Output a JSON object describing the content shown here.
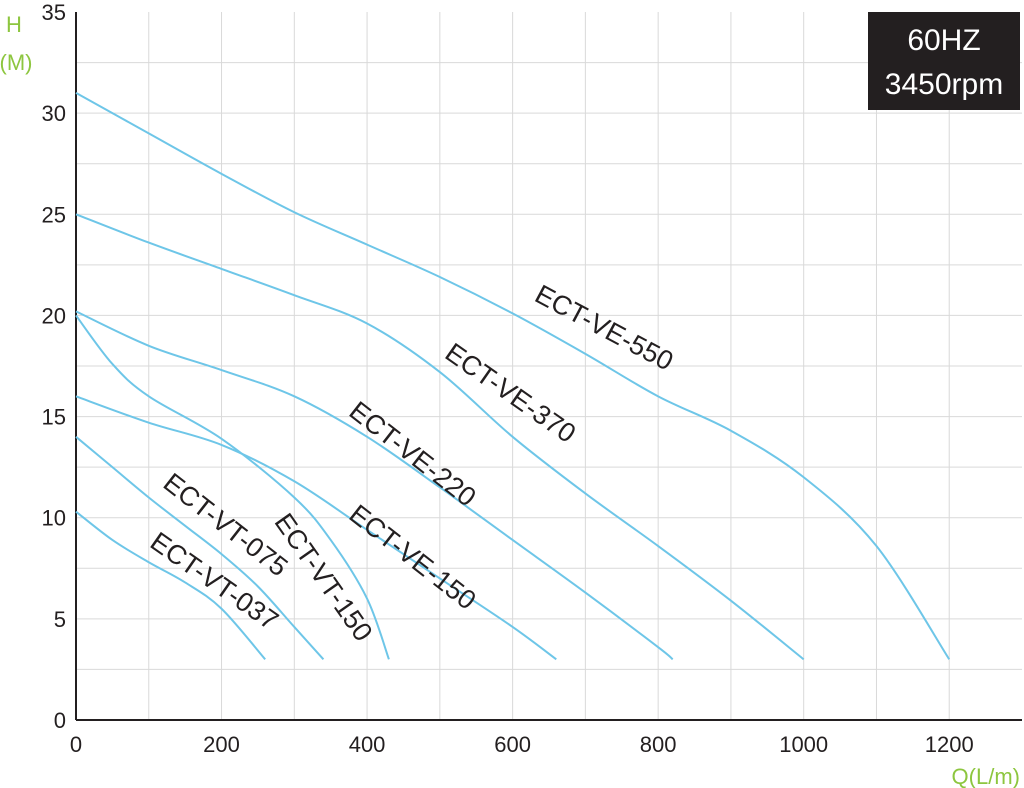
{
  "chart_data": {
    "type": "line",
    "xlabel": "Q(L/m)",
    "ylabel_line1": "H",
    "ylabel_line2": "(M)",
    "xlim": [
      0,
      1300
    ],
    "ylim": [
      0,
      35
    ],
    "x_ticks": [
      0,
      200,
      400,
      600,
      800,
      1000,
      1200
    ],
    "y_ticks": [
      0,
      5,
      10,
      15,
      20,
      25,
      30,
      35
    ],
    "grid": true,
    "badge": {
      "line1": "60HZ",
      "line2": "3450rpm",
      "placement": "top-right",
      "bg_color": "#231f20"
    },
    "curve_color": "#6ec6e8",
    "series": [
      {
        "name": "ECT-VE-550",
        "label": {
          "x": 720,
          "y": 19.0,
          "angle": 28
        },
        "x": [
          0,
          100,
          200,
          300,
          400,
          500,
          600,
          700,
          800,
          900,
          1000,
          1100,
          1200
        ],
        "y": [
          31.0,
          29.0,
          27.0,
          25.1,
          23.5,
          21.9,
          20.1,
          18.1,
          16.0,
          14.3,
          12.0,
          8.6,
          3.0
        ]
      },
      {
        "name": "ECT-VE-370",
        "label": {
          "x": 590,
          "y": 15.8,
          "angle": 35
        },
        "x": [
          0,
          100,
          200,
          300,
          400,
          500,
          600,
          700,
          800,
          900,
          1000
        ],
        "y": [
          25.0,
          23.6,
          22.3,
          21.0,
          19.6,
          17.2,
          14.0,
          11.2,
          8.6,
          5.9,
          3.0
        ]
      },
      {
        "name": "ECT-VE-220",
        "label": {
          "x": 455,
          "y": 12.8,
          "angle": 38
        },
        "x": [
          0,
          100,
          200,
          300,
          400,
          500,
          600,
          700,
          800,
          820
        ],
        "y": [
          20.2,
          18.5,
          17.3,
          16.0,
          14.0,
          11.5,
          8.9,
          6.3,
          3.6,
          3.0
        ]
      },
      {
        "name": "ECT-VE-150",
        "label": {
          "x": 455,
          "y": 7.7,
          "angle": 38
        },
        "x": [
          0,
          100,
          200,
          300,
          400,
          500,
          600,
          660
        ],
        "y": [
          16.0,
          14.7,
          13.6,
          11.8,
          9.4,
          7.0,
          4.6,
          3.0
        ]
      },
      {
        "name": "ECT-VT-150",
        "label": {
          "x": 330,
          "y": 6.8,
          "angle": 55
        },
        "x": [
          0,
          50,
          100,
          200,
          300,
          350,
          400,
          430
        ],
        "y": [
          20.0,
          17.6,
          16.0,
          13.9,
          11.0,
          8.9,
          6.0,
          3.0
        ]
      },
      {
        "name": "ECT-VT-075",
        "label": {
          "x": 198,
          "y": 9.3,
          "angle": 38
        },
        "x": [
          0,
          50,
          100,
          150,
          200,
          250,
          300,
          340
        ],
        "y": [
          14.0,
          12.5,
          11.0,
          9.6,
          8.2,
          6.6,
          4.6,
          3.0
        ]
      },
      {
        "name": "ECT-VT-037",
        "label": {
          "x": 183,
          "y": 6.5,
          "angle": 35
        },
        "x": [
          0,
          50,
          100,
          150,
          200,
          260
        ],
        "y": [
          10.3,
          8.9,
          7.8,
          6.8,
          5.5,
          3.0
        ]
      }
    ]
  }
}
